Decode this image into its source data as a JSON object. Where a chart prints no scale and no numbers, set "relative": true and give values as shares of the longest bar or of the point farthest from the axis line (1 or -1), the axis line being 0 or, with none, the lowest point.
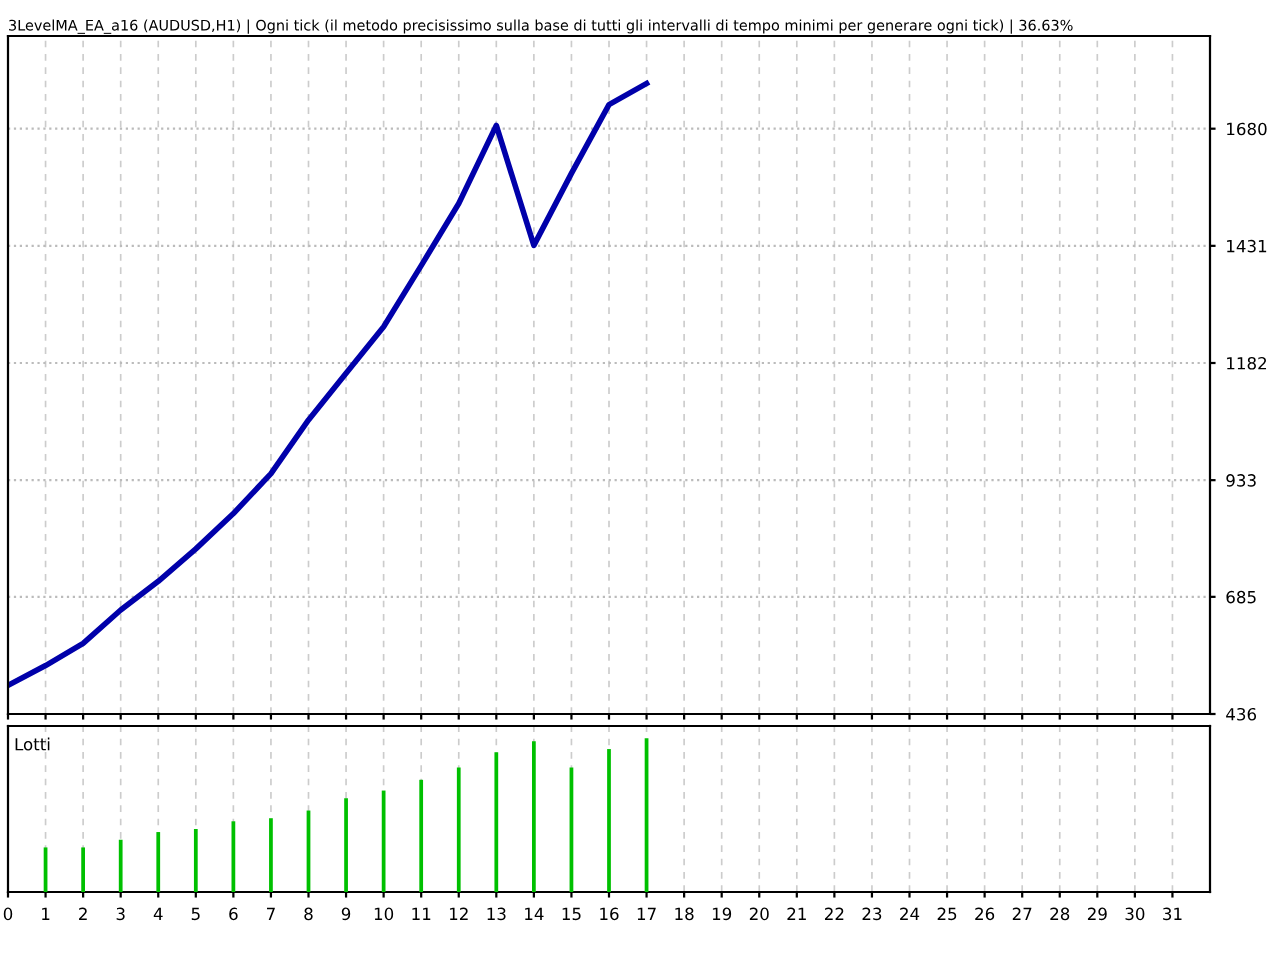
{
  "chart_data": [
    {
      "type": "line",
      "title": "3LevelMA_EA_a16 (AUDUSD,H1) | Ogni tick (il metodo precisissimo sulla base di tutti gli intervalli di tempo minimi per generare ogni tick) | 36.63%",
      "x": [
        0,
        1,
        2,
        3,
        4,
        5,
        6,
        7,
        8,
        9,
        10,
        11,
        12,
        13,
        14,
        15,
        16,
        17
      ],
      "series": [
        {
          "color": "#0000aa",
          "values": [
            497,
            539,
            586,
            657,
            718,
            787,
            862,
            947,
            1061,
            1160,
            1259,
            1389,
            1521,
            1687,
            1432,
            1585,
            1731,
            1776
          ]
        }
      ],
      "xlim": [
        0,
        32
      ],
      "xticks": [
        0,
        1,
        2,
        3,
        4,
        5,
        6,
        7,
        8,
        9,
        10,
        11,
        12,
        13,
        14,
        15,
        16,
        17,
        18,
        19,
        20,
        21,
        22,
        23,
        24,
        25,
        26,
        27,
        28,
        29,
        30,
        31
      ],
      "ylim": [
        436,
        1877
      ],
      "yticks": [
        436,
        685,
        933,
        1182,
        1431,
        1680
      ],
      "grid": true,
      "tick_labels": "y",
      "legend": false,
      "marker": "none"
    },
    {
      "type": "bar",
      "title": "Lotti",
      "x": [
        1,
        2,
        3,
        4,
        5,
        6,
        7,
        8,
        9,
        10,
        11,
        12,
        13,
        14,
        15,
        16,
        17
      ],
      "series": [
        {
          "color": "#00c000",
          "values": [
            0.29,
            0.29,
            0.34,
            0.39,
            0.41,
            0.46,
            0.48,
            0.53,
            0.61,
            0.66,
            0.73,
            0.81,
            0.91,
            0.98,
            0.81,
            0.93,
            1
          ]
        }
      ],
      "relative": true,
      "xlim": [
        0,
        32
      ],
      "xticks": [
        0,
        1,
        2,
        3,
        4,
        5,
        6,
        7,
        8,
        9,
        10,
        11,
        12,
        13,
        14,
        15,
        16,
        17,
        18,
        19,
        20,
        21,
        22,
        23,
        24,
        25,
        26,
        27,
        28,
        29,
        30,
        31
      ],
      "grid": "x",
      "tick_labels": "x",
      "legend": false
    }
  ]
}
